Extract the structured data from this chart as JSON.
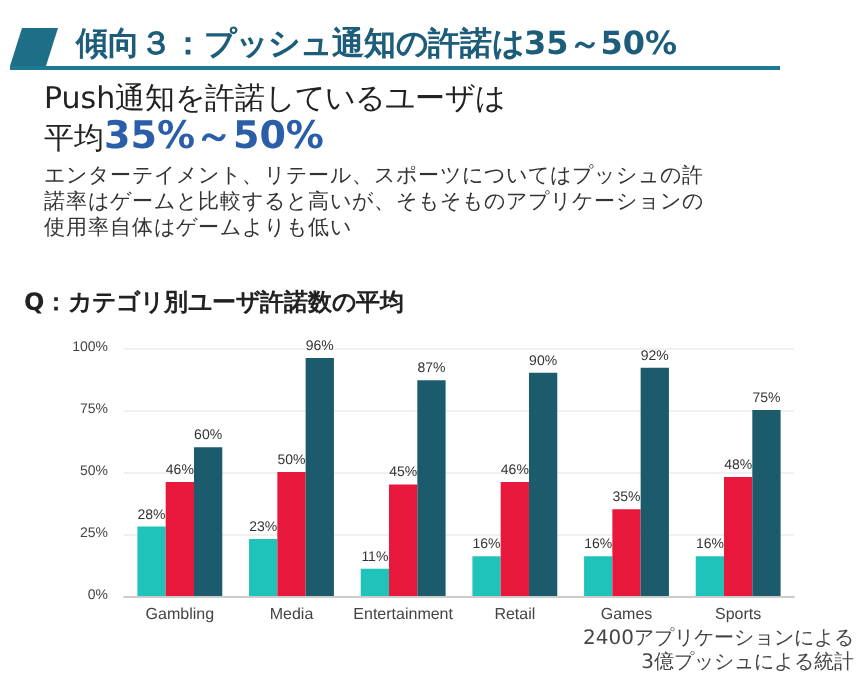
{
  "chart_data": {
    "type": "bar",
    "title": "傾向３：プッシュ通知の許諾は35～50%",
    "subtitle": "Push通知を許諾しているユーザは平均35%～50%",
    "annotations": [
      "エンターテイメント、リテール、スポーツについてはプッシュの許諾率はゲームと比較すると高いが、そもそものアプリケーションの使用率自体はゲームよりも低い",
      "Q：カテゴリ別ユーザ許諾数の平均",
      "2400アプリケーションによる3億プッシュによる統計"
    ],
    "categories": [
      "Gambling",
      "Media",
      "Entertainment",
      "Retail",
      "Games",
      "Sports"
    ],
    "series": [
      {
        "color": "#20c3b9",
        "values": [
          28,
          23,
          11,
          16,
          16,
          16
        ],
        "value_labels": [
          "28%",
          "23%",
          "11%",
          "16%",
          "16%",
          "16%"
        ]
      },
      {
        "color": "#e8173c",
        "values": [
          46,
          50,
          45,
          46,
          35,
          48
        ],
        "value_labels": [
          "46%",
          "50%",
          "45%",
          "46%",
          "35%",
          "48%"
        ]
      },
      {
        "color": "#1b5b6b",
        "values": [
          60,
          96,
          87,
          90,
          92,
          75
        ],
        "value_labels": [
          "60%",
          "96%",
          "87%",
          "90%",
          "92%",
          "75%"
        ]
      }
    ],
    "ylim": [
      0,
      100
    ],
    "yticks": [
      {
        "value": 0,
        "label": "0%"
      },
      {
        "value": 25,
        "label": "25%"
      },
      {
        "value": 50,
        "label": "50%"
      },
      {
        "value": 75,
        "label": "75%"
      },
      {
        "value": 100,
        "label": "100%"
      }
    ],
    "grid": "y"
  }
}
